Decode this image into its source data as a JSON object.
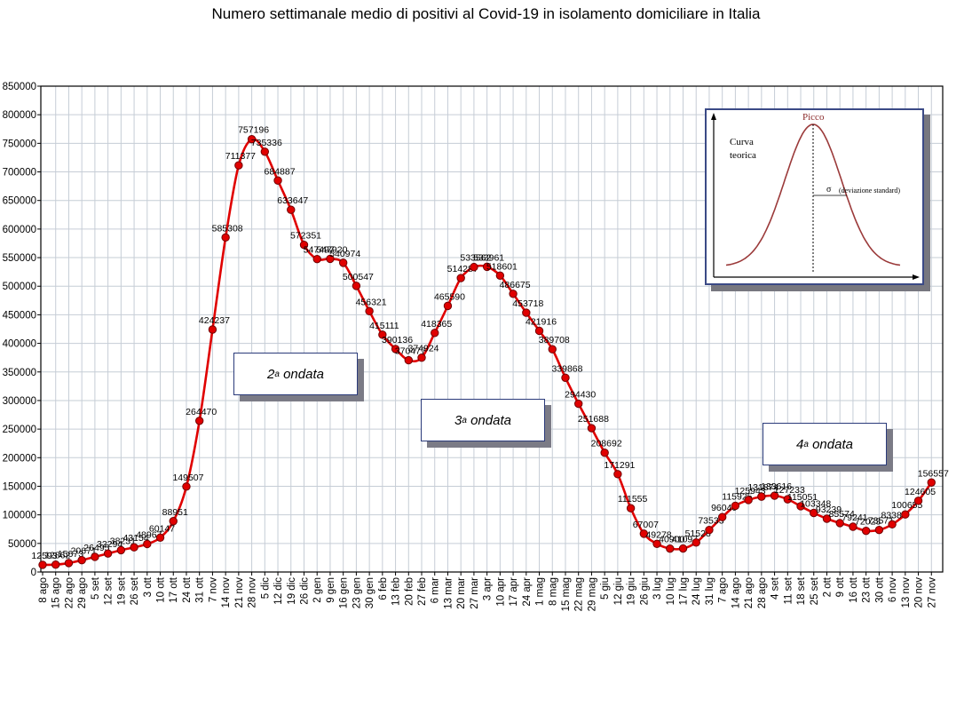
{
  "title": "Numero settimanale medio di positivi al Covid-19  in isolamento domiciliare in Italia",
  "chart_data": {
    "type": "line",
    "title": "Numero settimanale medio di positivi al Covid-19  in isolamento domiciliare in Italia",
    "xlabel": "",
    "ylabel": "",
    "ylim": [
      0,
      850000
    ],
    "y_ticks": [
      "0",
      "50000",
      "100000",
      "150000",
      "200000",
      "250000",
      "300000",
      "350000",
      "400000",
      "450000",
      "500000",
      "550000",
      "600000",
      "650000",
      "700000",
      "750000",
      "800000",
      "850000"
    ],
    "grid": true,
    "categories": [
      "8 ago",
      "15 ago",
      "22 ago",
      "29 ago",
      "5 set",
      "12 set",
      "19 set",
      "26 set",
      "3 ott",
      "10 ott",
      "17 ott",
      "24 ott",
      "31 ott",
      "7 nov",
      "14 nov",
      "21 nov",
      "28 nov",
      "5 dic",
      "12 dic",
      "19 dic",
      "26 dic",
      "2 gen",
      "9 gen",
      "16 gen",
      "23 gen",
      "30 gen",
      "6 feb",
      "13 feb",
      "20 feb",
      "27 feb",
      "6 mar",
      "13 mar",
      "20 mar",
      "27 mar",
      "3 apr",
      "10 apr",
      "17 apr",
      "24 apr",
      "1 mag",
      "8 mag",
      "15 mag",
      "22 mag",
      "29 mag",
      "5 giu",
      "12 giu",
      "19 giu",
      "26 giu",
      "3 lug",
      "10 lug",
      "17 lug",
      "24 lug",
      "31 lug",
      "7 ago",
      "14 ago",
      "21 ago",
      "28 ago",
      "4 set",
      "11 set",
      "18 set",
      "25 set",
      "2 ott",
      "9 ott",
      "16 ott",
      "23 ott",
      "30 ott",
      "6 nov",
      "13 nov",
      "20 nov",
      "27 nov"
    ],
    "series": [
      {
        "values": [
          12593,
          12862,
          15673,
          20671,
          26495,
          32294,
          38231,
          43154,
          48967,
          60147,
          88951,
          149507,
          264470,
          424237,
          585308,
          711377,
          757196,
          735336,
          684887,
          633647,
          572351,
          547497,
          547920,
          540974,
          500547,
          456321,
          415111,
          390136,
          370477,
          374924,
          418365,
          465590,
          514287,
          533562,
          533961,
          518601,
          486675,
          453718,
          421916,
          389708,
          339868,
          294430,
          251688,
          208692,
          171291,
          111555,
          67007,
          49278,
          40900,
          41097,
          51528,
          73533,
          96040,
          115925,
          125943,
          131874,
          133616,
          127233,
          115051,
          103348,
          93239,
          85574,
          79241,
          72023,
          73571,
          83380,
          100655,
          124605,
          156557
        ],
        "labels": [
          "12593",
          "12862",
          "15673",
          "20671",
          "26495",
          "32294",
          "38231",
          "43154",
          "48967",
          "60147",
          "88951",
          "149507",
          "264470",
          "424237",
          "585308",
          "711377",
          "757196",
          "735336",
          "684887",
          "633647",
          "572351",
          "547497",
          "547920",
          "540974",
          "500547",
          "456321",
          "415111",
          "390136",
          "370477",
          "374924",
          "418365",
          "465590",
          "514287",
          "533562",
          "533961",
          "518601",
          "486675",
          "453718",
          "421916",
          "389708",
          "339868",
          "294430",
          "251688",
          "208692",
          "171291",
          "111555",
          "67007",
          "49278",
          "40900",
          "41097",
          "51528",
          "73533",
          "96040",
          "115925",
          "125943",
          "131874",
          "133616",
          "127233",
          "115051",
          "103348",
          "93239",
          "85574",
          "79241",
          "72023",
          "73571",
          "83380",
          "100655",
          "124605",
          "156557"
        ]
      }
    ],
    "annotations": [
      {
        "sup": "a",
        "prefix": "2",
        "text": "ondata"
      },
      {
        "sup": "a",
        "prefix": "3",
        "text": "ondata"
      },
      {
        "sup": "a",
        "prefix": "4",
        "text": "ondata"
      }
    ],
    "colors": {
      "line": "#e00000",
      "marker_fill": "#e00000",
      "marker_stroke": "#700000",
      "grid": "#c6cdd6"
    }
  },
  "inset": {
    "peak_label": "Picco",
    "curve_label_1": "Curva",
    "curve_label_2": "teorica",
    "sigma_label": "σ",
    "sigma_desc": "(deviazione standard)"
  }
}
